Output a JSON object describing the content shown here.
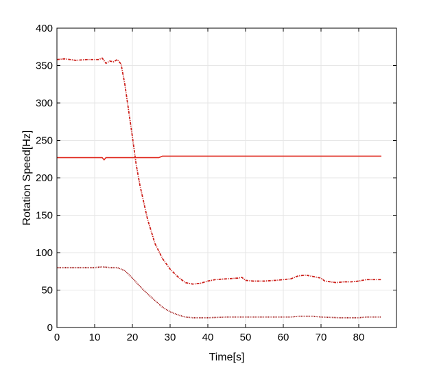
{
  "chart_data": {
    "type": "line",
    "title": "",
    "xlabel": "Time[s]",
    "ylabel": "Rotation Speed[Hz]",
    "xlim": [
      0,
      90
    ],
    "ylim": [
      0,
      400
    ],
    "xticks": [
      0,
      10,
      20,
      30,
      40,
      50,
      60,
      70,
      80
    ],
    "yticks": [
      0,
      50,
      100,
      150,
      200,
      250,
      300,
      350,
      400
    ],
    "grid": true,
    "legend": "none",
    "series": [
      {
        "style": "dash-dot",
        "color": "#cc1f1a",
        "points": [
          [
            0,
            358
          ],
          [
            2,
            359
          ],
          [
            5,
            357
          ],
          [
            8,
            358
          ],
          [
            11,
            358
          ],
          [
            12,
            360
          ],
          [
            13,
            353
          ],
          [
            14,
            356
          ],
          [
            15,
            355
          ],
          [
            16,
            358
          ],
          [
            17,
            352
          ],
          [
            18,
            325
          ],
          [
            19,
            290
          ],
          [
            20,
            255
          ],
          [
            21,
            218
          ],
          [
            22,
            190
          ],
          [
            24,
            145
          ],
          [
            26,
            112
          ],
          [
            28,
            92
          ],
          [
            30,
            78
          ],
          [
            32,
            68
          ],
          [
            34,
            60
          ],
          [
            36,
            58
          ],
          [
            38,
            59
          ],
          [
            40,
            62
          ],
          [
            42,
            64
          ],
          [
            45,
            65
          ],
          [
            48,
            66
          ],
          [
            49,
            67
          ],
          [
            50,
            63
          ],
          [
            52,
            62
          ],
          [
            55,
            62
          ],
          [
            58,
            63
          ],
          [
            60,
            64
          ],
          [
            62,
            65
          ],
          [
            64,
            69
          ],
          [
            66,
            70
          ],
          [
            68,
            68
          ],
          [
            70,
            66
          ],
          [
            71,
            62
          ],
          [
            74,
            60
          ],
          [
            76,
            61
          ],
          [
            78,
            61
          ],
          [
            80,
            62
          ],
          [
            82,
            64
          ],
          [
            84,
            64
          ],
          [
            86,
            64
          ]
        ]
      },
      {
        "style": "solid",
        "color": "#e02b20",
        "points": [
          [
            0,
            227
          ],
          [
            12,
            227
          ],
          [
            12.5,
            224
          ],
          [
            13,
            227
          ],
          [
            27,
            227
          ],
          [
            28,
            229
          ],
          [
            86,
            229
          ]
        ]
      },
      {
        "style": "dotted",
        "color": "#a01818",
        "points": [
          [
            0,
            80
          ],
          [
            5,
            80
          ],
          [
            10,
            80
          ],
          [
            12,
            81
          ],
          [
            14,
            80
          ],
          [
            16,
            80
          ],
          [
            18,
            76
          ],
          [
            20,
            66
          ],
          [
            22,
            55
          ],
          [
            24,
            45
          ],
          [
            26,
            36
          ],
          [
            28,
            27
          ],
          [
            30,
            21
          ],
          [
            32,
            17
          ],
          [
            34,
            14
          ],
          [
            36,
            13
          ],
          [
            40,
            13
          ],
          [
            45,
            14
          ],
          [
            50,
            14
          ],
          [
            55,
            14
          ],
          [
            60,
            14
          ],
          [
            62,
            14
          ],
          [
            64,
            15
          ],
          [
            66,
            15
          ],
          [
            68,
            15
          ],
          [
            70,
            14
          ],
          [
            75,
            13
          ],
          [
            80,
            13
          ],
          [
            82,
            14
          ],
          [
            86,
            14
          ]
        ]
      }
    ]
  }
}
